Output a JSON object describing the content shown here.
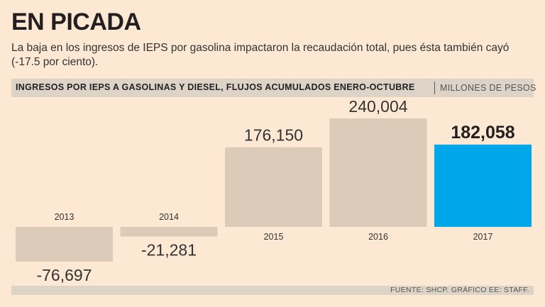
{
  "header": {
    "title": "EN PICADA",
    "subtitle": "La baja en los ingresos de IEPS por gasolina impactaron la recaudación total, pues ésta también cayó (-17.5 por ciento).",
    "band_title": "INGRESOS POR IEPS A GASOLINAS Y DIESEL, FLUJOS ACUMULADOS ENERO-OCTUBRE",
    "band_unit": "MILLONES DE PESOS"
  },
  "footer": {
    "source": "FUENTE: SHCP. GRÁFICO EE: STAFF."
  },
  "chart_data": {
    "type": "bar",
    "categories": [
      "2013",
      "2014",
      "2015",
      "2016",
      "2017"
    ],
    "values": [
      -76697,
      -21281,
      176150,
      240004,
      182058
    ],
    "value_labels": [
      "-76,697",
      "-21,281",
      "176,150",
      "240,004",
      "182,058"
    ],
    "highlight_index": 4,
    "colors": {
      "bar": "#dccbb8",
      "highlight": "#00a6ea",
      "text": "#333333"
    },
    "ylim": [
      -76697,
      240004
    ]
  }
}
